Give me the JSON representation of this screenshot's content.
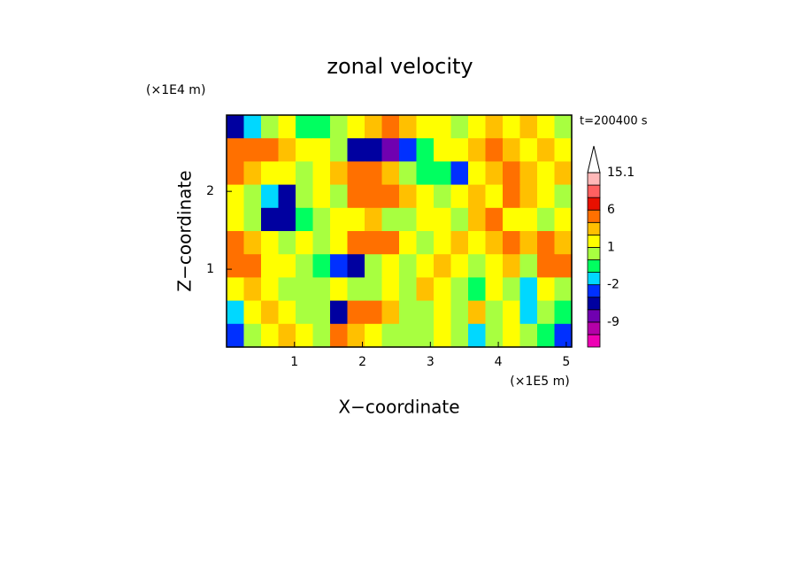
{
  "chart_data": {
    "type": "contour",
    "title": "zonal velocity",
    "xlabel": "X−coordinate",
    "ylabel": "Z−coordinate",
    "x_unit": "(×1E5 m)",
    "y_unit": "(×1E4 m)",
    "annotation": "t=200400 s",
    "xlim": [
      0,
      5.08
    ],
    "ylim": [
      0,
      2.98
    ],
    "xticks": [
      1,
      2,
      3,
      4,
      5
    ],
    "yticks": [
      1,
      2
    ],
    "z": [
      [
        -4,
        -2,
        0,
        1,
        -1,
        -1,
        0,
        1,
        2,
        3,
        2,
        1,
        1,
        0,
        1,
        2,
        1,
        2,
        1,
        0
      ],
      [
        4,
        5,
        4,
        2,
        1,
        1,
        0,
        -5,
        -6,
        -7,
        -3,
        -1,
        1,
        1,
        2,
        3,
        2,
        1,
        2,
        1
      ],
      [
        3,
        2,
        1,
        1,
        0,
        1,
        2,
        3,
        3,
        2,
        0,
        -1,
        -1,
        -3,
        1,
        2,
        3,
        2,
        1,
        2
      ],
      [
        1,
        0,
        -2,
        -5,
        0,
        1,
        0,
        4,
        5,
        4,
        2,
        1,
        0,
        1,
        2,
        1,
        3,
        2,
        1,
        0
      ],
      [
        1,
        0,
        -4,
        -6,
        -1,
        0,
        1,
        1,
        2,
        0,
        0,
        1,
        1,
        0,
        2,
        3,
        1,
        1,
        0,
        1
      ],
      [
        3,
        2,
        1,
        0,
        1,
        0,
        1,
        3,
        5,
        4,
        1,
        0,
        1,
        2,
        1,
        2,
        3,
        2,
        3,
        2
      ],
      [
        4,
        3,
        1,
        1,
        0,
        -1,
        -3,
        -5,
        0,
        1,
        0,
        1,
        2,
        1,
        0,
        1,
        2,
        0,
        3,
        5
      ],
      [
        1,
        2,
        1,
        0,
        0,
        0,
        1,
        0,
        0,
        1,
        0,
        2,
        1,
        0,
        -1,
        1,
        0,
        -2,
        1,
        0
      ],
      [
        -2,
        1,
        2,
        1,
        0,
        0,
        -5,
        3,
        3,
        2,
        0,
        0,
        1,
        0,
        2,
        0,
        1,
        -2,
        0,
        -1
      ],
      [
        -3,
        0,
        1,
        2,
        1,
        0,
        3,
        2,
        1,
        0,
        0,
        0,
        1,
        0,
        -2,
        0,
        1,
        0,
        -1,
        -3
      ]
    ],
    "levels": [
      -15,
      -12,
      -9,
      -6,
      -3,
      -2,
      -1,
      0,
      1,
      2,
      3,
      6,
      9,
      12,
      15.1
    ],
    "colors": [
      "#ee00b4",
      "#b400a8",
      "#7000b0",
      "#0000a0",
      "#0030ff",
      "#00d8ff",
      "#00ff60",
      "#a8ff40",
      "#ffff00",
      "#ffc000",
      "#ff7000",
      "#e81000",
      "#ff6060",
      "#ffb8b8"
    ],
    "over_color": "#ffffff",
    "colorbar_ticks": [
      15.1,
      6,
      1,
      -2,
      -9
    ]
  }
}
